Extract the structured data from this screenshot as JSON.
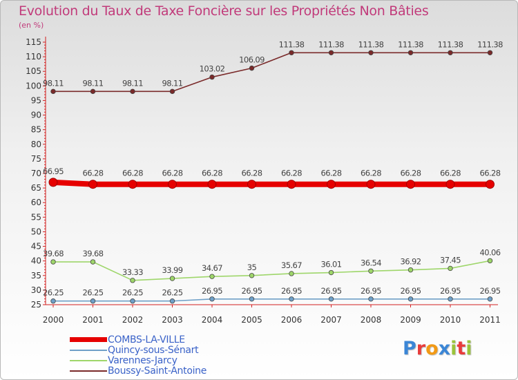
{
  "page": {
    "title": "Evolution du Taux de Taxe Foncière sur les Propriétés Non Bâties",
    "unit": "(en %)",
    "logo": "Proxiti"
  },
  "chart_data": {
    "type": "line",
    "title": "Evolution du Taux de Taxe Foncière sur les Propriétés Non Bâties",
    "ylabel": "(en %)",
    "xlabel": "",
    "x": [
      "2000",
      "2001",
      "2002",
      "2003",
      "2004",
      "2005",
      "2006",
      "2007",
      "2008",
      "2009",
      "2010",
      "2011"
    ],
    "ylim": [
      25,
      115
    ],
    "yticks": [
      25,
      30,
      35,
      40,
      45,
      50,
      55,
      60,
      65,
      70,
      75,
      80,
      85,
      90,
      95,
      100,
      105,
      110,
      115
    ],
    "grid": false,
    "legend_position": "bottom-left",
    "series": [
      {
        "name": "COMBS-LA-VILLE",
        "color": "#e60000",
        "highlight": true,
        "values": [
          66.95,
          66.28,
          66.28,
          66.28,
          66.28,
          66.28,
          66.28,
          66.28,
          66.28,
          66.28,
          66.28,
          66.28
        ],
        "labels": [
          "66.95",
          "66.28",
          "66.28",
          "66.28",
          "66.28",
          "66.28",
          "66.28",
          "66.28",
          "66.28",
          "66.28",
          "66.28",
          "66.28"
        ]
      },
      {
        "name": "Quincy-sous-Sénart",
        "color": "#6fa0c8",
        "highlight": false,
        "values": [
          26.25,
          26.25,
          26.25,
          26.25,
          26.95,
          26.95,
          26.95,
          26.95,
          26.95,
          26.95,
          26.95,
          26.95
        ],
        "labels": [
          "26.25",
          "26.25",
          "26.25",
          "26.25",
          "26.95",
          "26.95",
          "26.95",
          "26.95",
          "26.95",
          "26.95",
          "26.95",
          "26.95"
        ]
      },
      {
        "name": "Varennes-Jarcy",
        "color": "#9ed66a",
        "highlight": false,
        "values": [
          39.68,
          39.68,
          33.33,
          33.99,
          34.67,
          35,
          35.67,
          36.01,
          36.54,
          36.92,
          37.45,
          40.06
        ],
        "labels": [
          "39.68",
          "39.68",
          "33.33",
          "33.99",
          "34.67",
          "35",
          "35.67",
          "36.01",
          "36.54",
          "36.92",
          "37.45",
          "40.06"
        ]
      },
      {
        "name": "Boussy-Saint-Antoine",
        "color": "#7a2a2a",
        "highlight": false,
        "values": [
          98.11,
          98.11,
          98.11,
          98.11,
          103.02,
          106.09,
          111.38,
          111.38,
          111.38,
          111.38,
          111.38,
          111.38
        ],
        "labels": [
          "98.11",
          "98.11",
          "98.11",
          "98.11",
          "103.02",
          "106.09",
          "111.38",
          "111.38",
          "111.38",
          "111.38",
          "111.38",
          "111.38"
        ]
      }
    ]
  }
}
